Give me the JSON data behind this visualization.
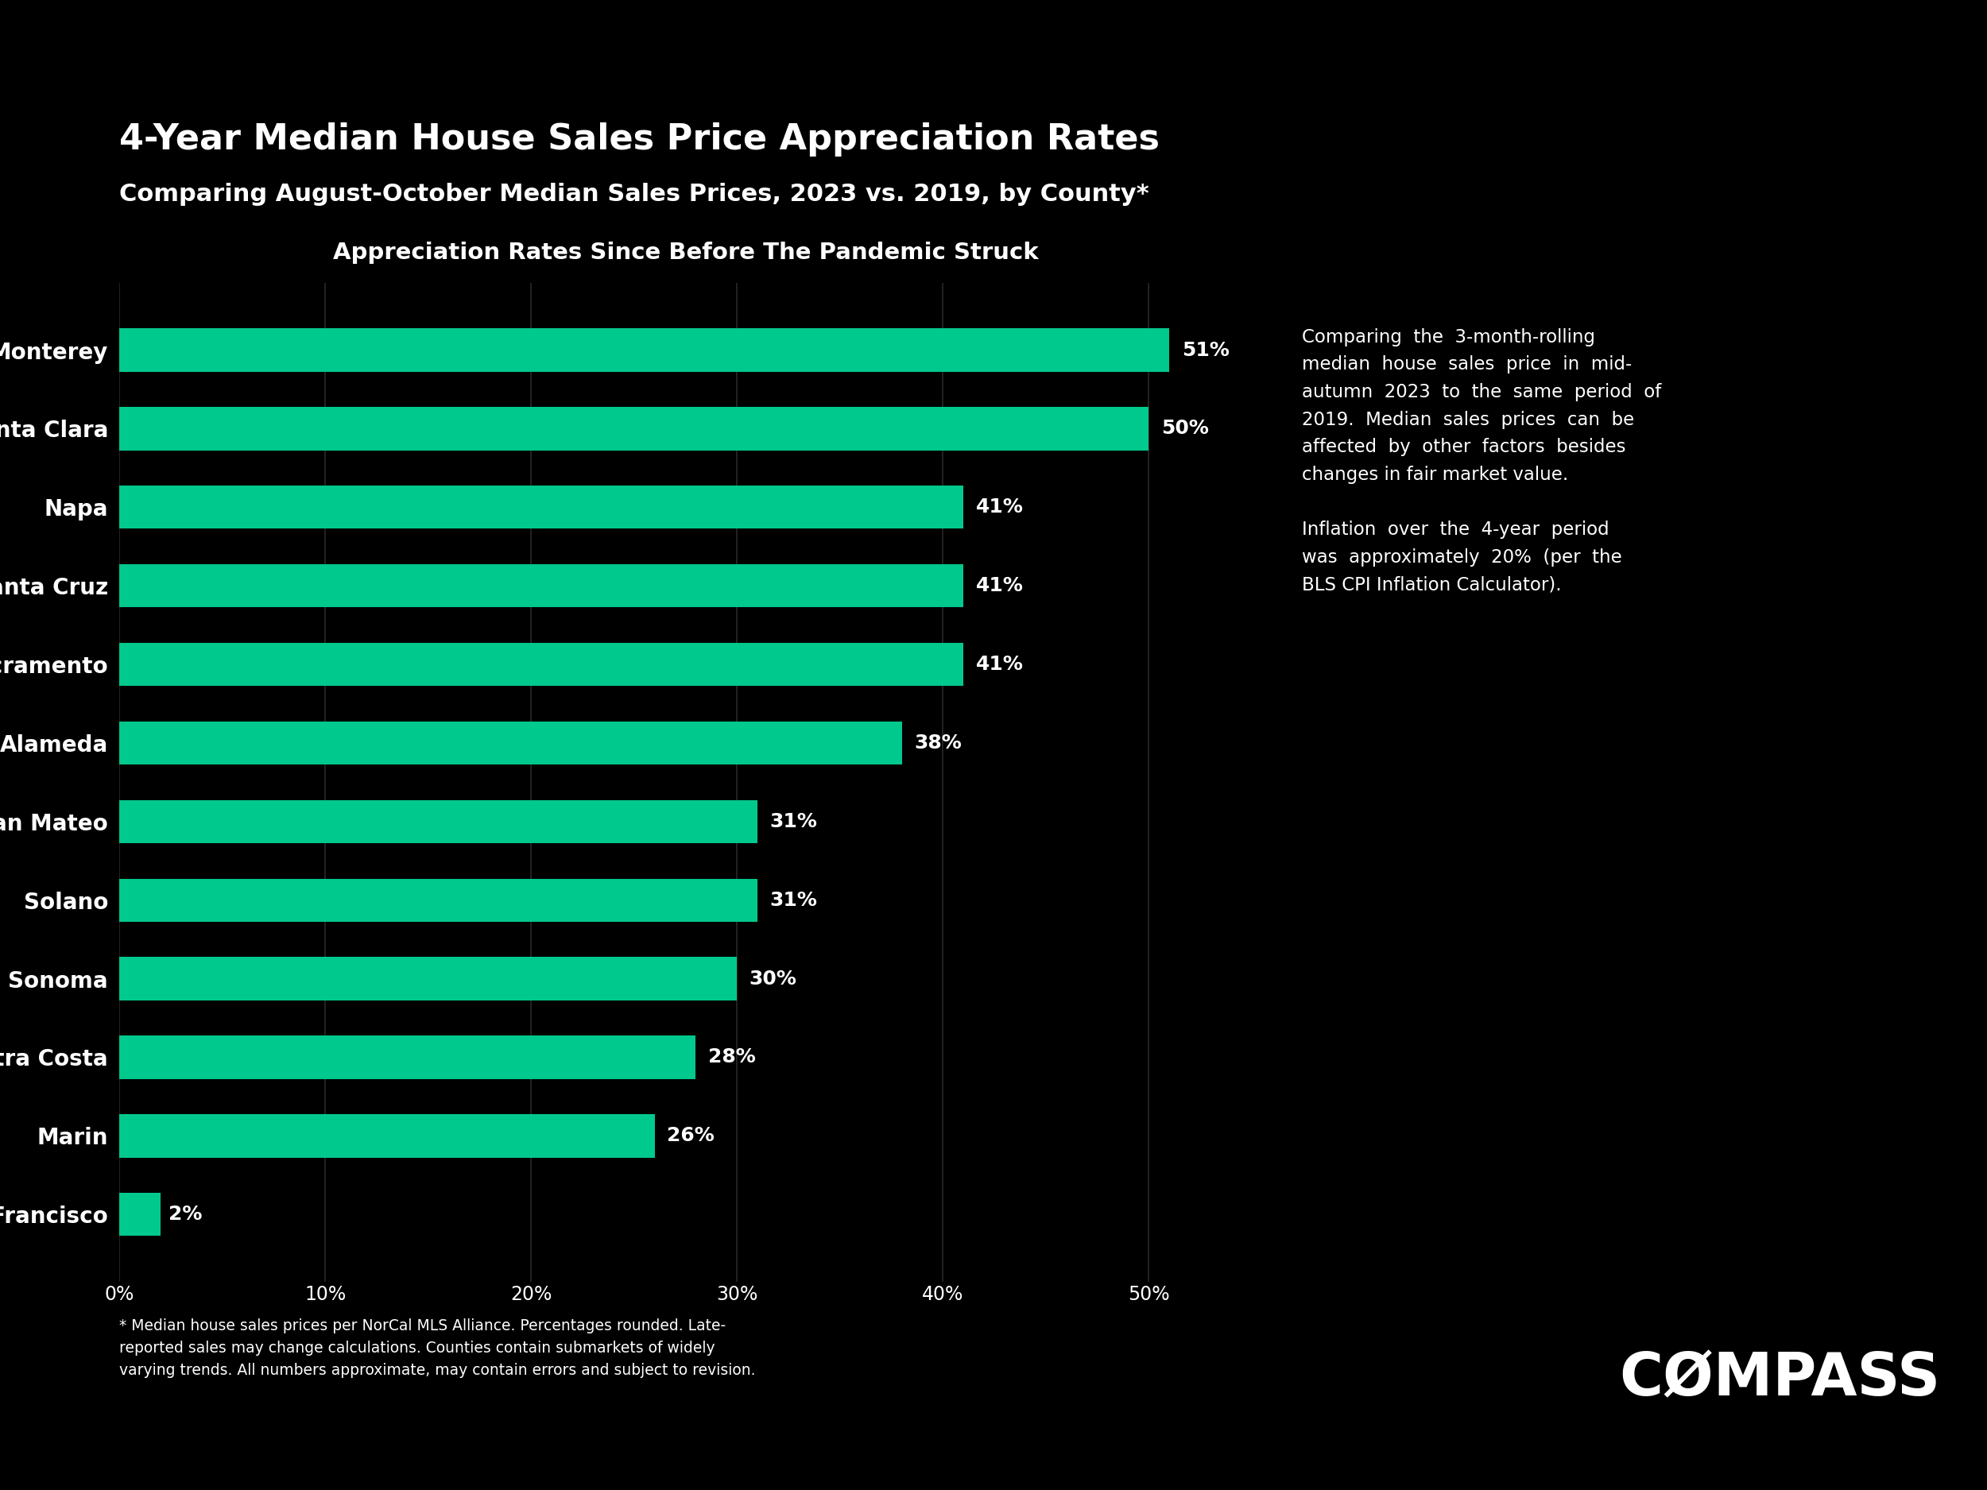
{
  "title": "4-Year Median House Sales Price Appreciation Rates",
  "subtitle": "Comparing August-October Median Sales Prices, 2023 vs. 2019, by County*",
  "chart_title": "Appreciation Rates Since Before The Pandemic Struck",
  "categories": [
    "Monterey",
    "Santa Clara",
    "Napa",
    "Santa Cruz",
    "Sacramento",
    "Alameda",
    "San Mateo",
    "Solano",
    "Sonoma",
    "Contra Costa",
    "Marin",
    "San Francisco"
  ],
  "values": [
    51,
    50,
    41,
    41,
    41,
    38,
    31,
    31,
    30,
    28,
    26,
    2
  ],
  "bar_color": "#00C98D",
  "background_color": "#000000",
  "text_color": "#ffffff",
  "annotation_line1": "Comparing  the  3-month-rolling",
  "annotation_line2": "median  house  sales  price  in  mid-",
  "annotation_line3": "autumn  2023  to  the  same  period  of",
  "annotation_line4": "2019.  Median  sales  prices  can  be",
  "annotation_line5": "affected  by  other  factors  besides",
  "annotation_line6": "changes in fair market value.",
  "annotation_line7": "",
  "annotation_line8": "Inflation  over  the  4-year  period",
  "annotation_line9": "was  approximately  20%  (per  the",
  "annotation_line10": "BLS CPI Inflation Calculator).",
  "footnote_line1": "* Median house sales prices per NorCal MLS Alliance. Percentages rounded. Late-",
  "footnote_line2": "reported sales may change calculations. Counties contain submarkets of widely",
  "footnote_line3": "varying trends. All numbers approximate, may contain errors and subject to revision.",
  "xlim": [
    0,
    55
  ],
  "xticks": [
    0,
    10,
    20,
    30,
    40,
    50
  ],
  "xticklabels": [
    "0%",
    "10%",
    "20%",
    "30%",
    "40%",
    "50%"
  ]
}
